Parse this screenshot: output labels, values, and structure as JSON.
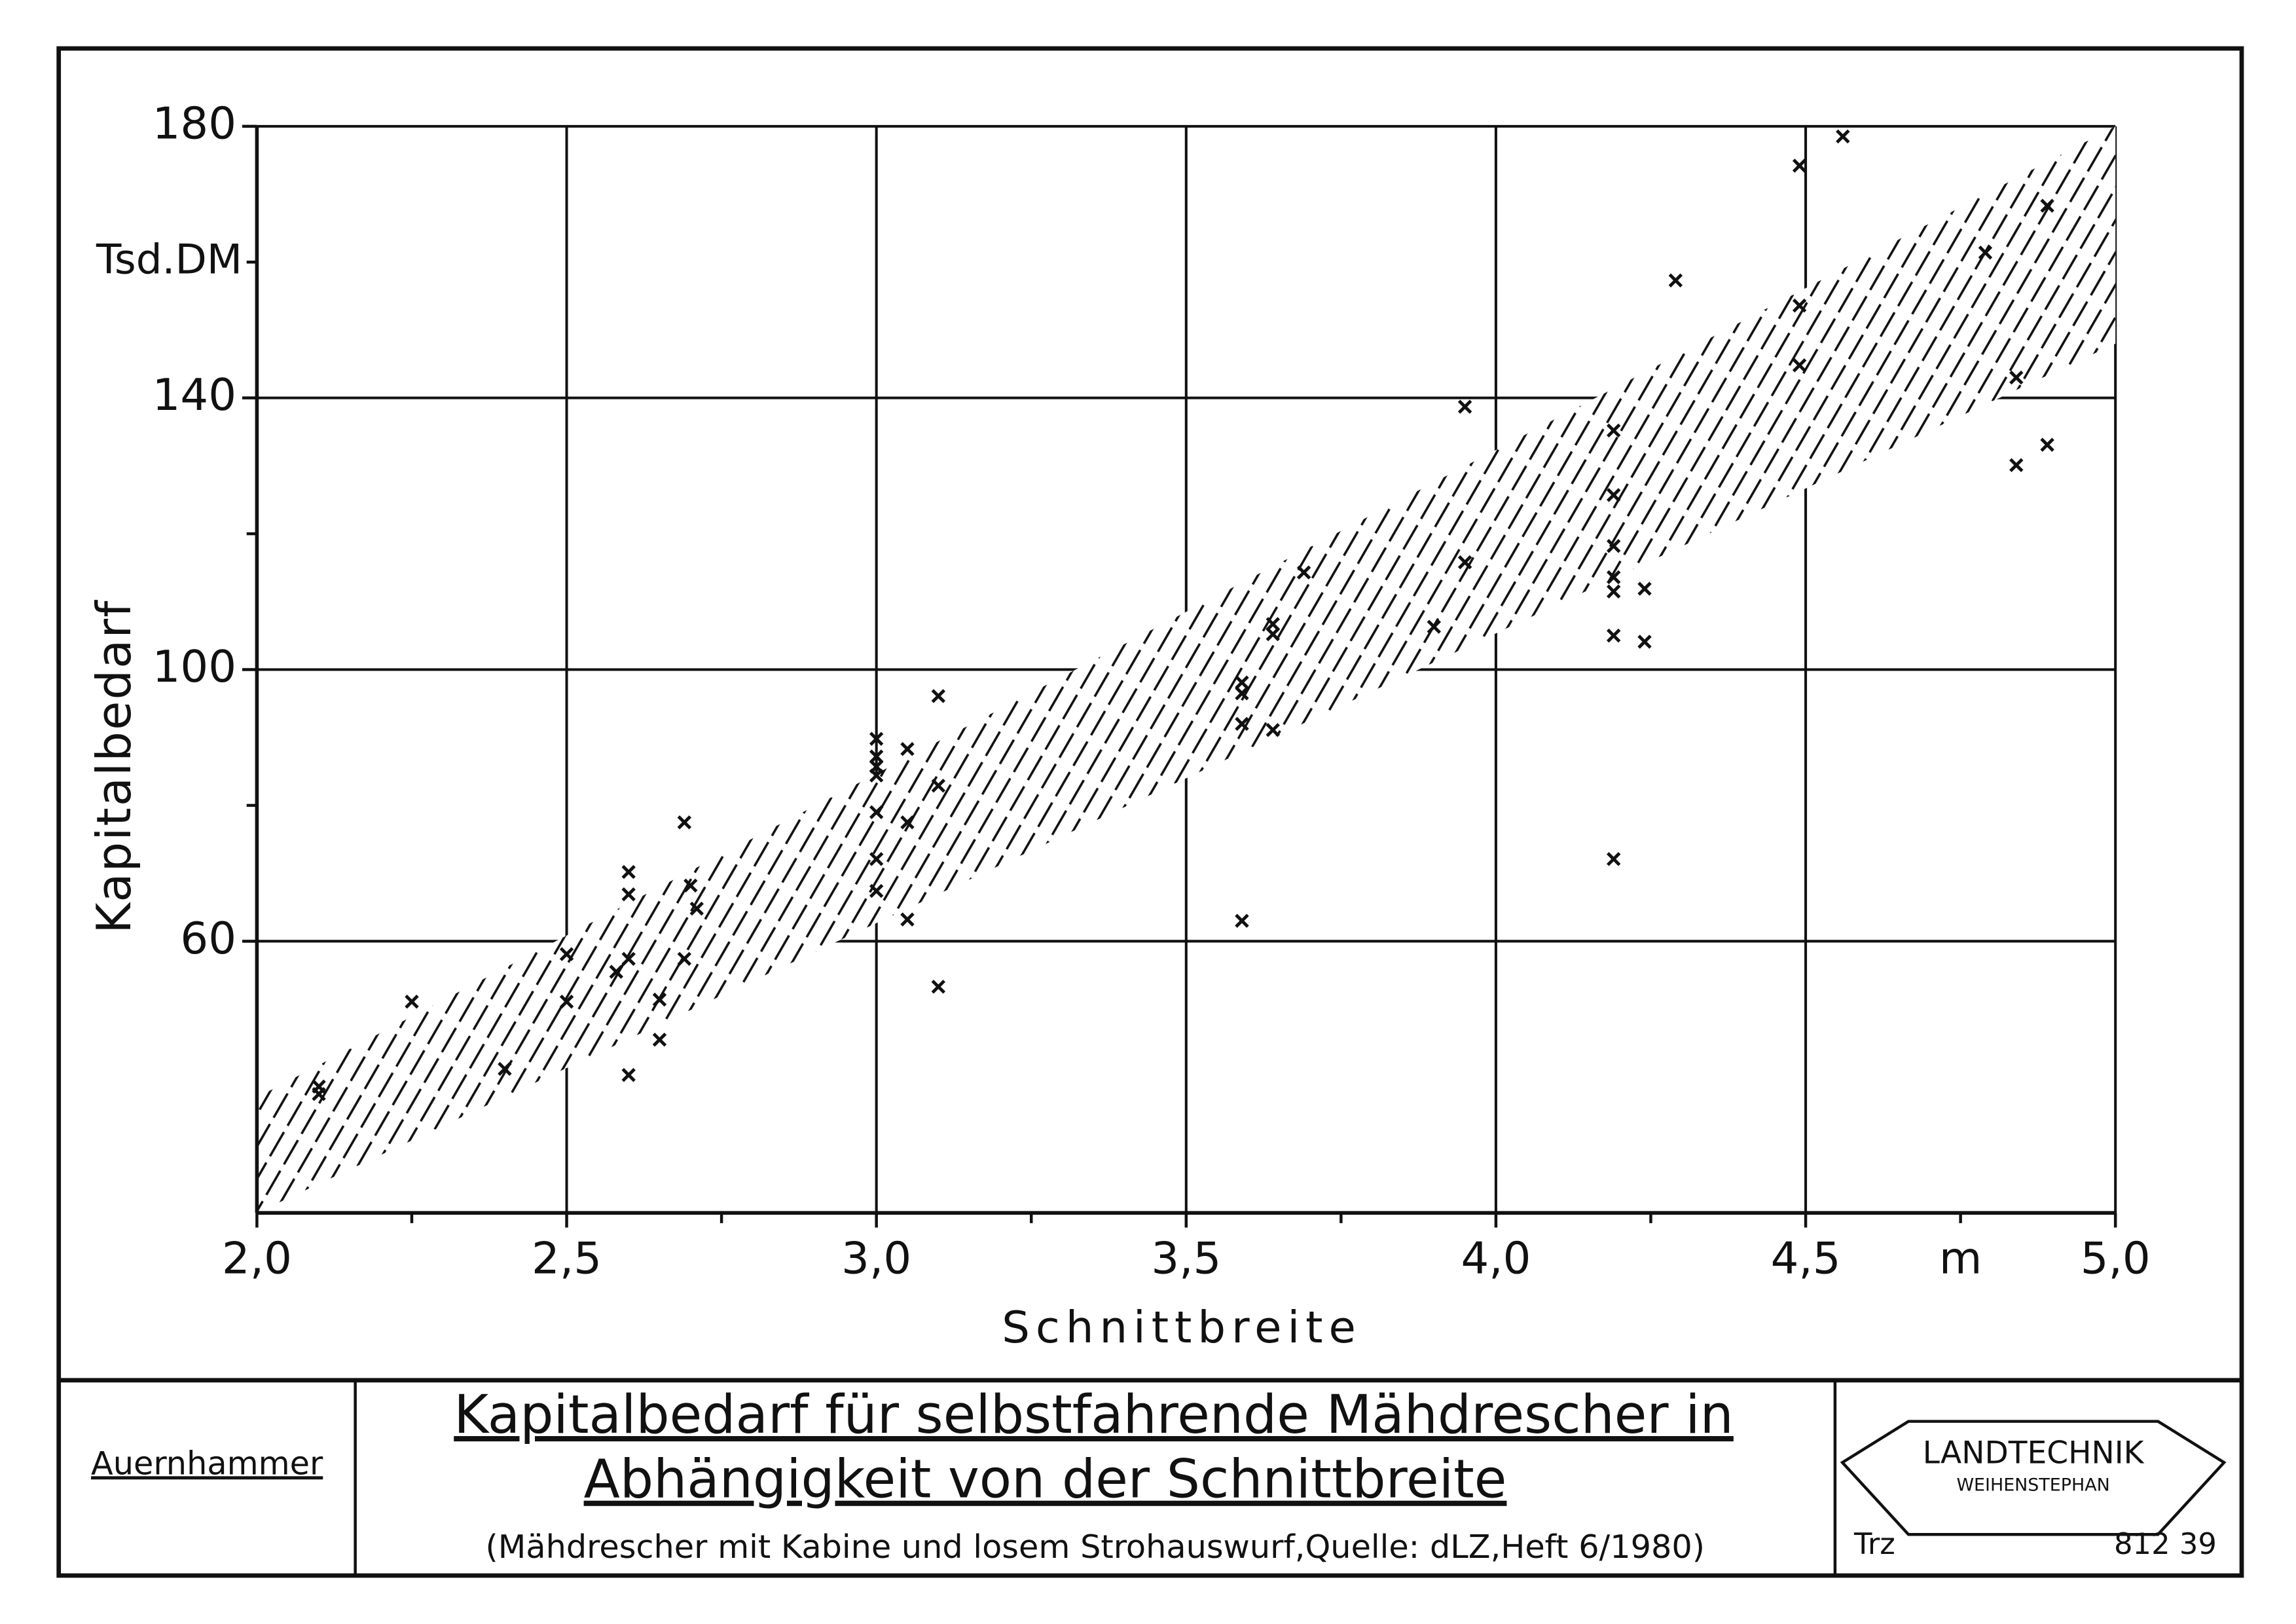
{
  "chart_data": {
    "type": "scatter",
    "x_label": "Schnittbreite",
    "y_label": "Kapitalbedarf",
    "x_unit": "m",
    "y_unit": "Tsd.DM",
    "xlim": [
      2.0,
      5.0
    ],
    "ylim": [
      20,
      180
    ],
    "xticks": [
      {
        "value": 2.0,
        "label": "2,0"
      },
      {
        "value": 2.5,
        "label": "2,5"
      },
      {
        "value": 3.0,
        "label": "3,0"
      },
      {
        "value": 3.5,
        "label": "3,5"
      },
      {
        "value": 4.0,
        "label": "4,0"
      },
      {
        "value": 4.5,
        "label": "4,5"
      },
      {
        "value": 5.0,
        "label": "5,0"
      }
    ],
    "yticks": [
      60,
      100,
      140,
      180
    ],
    "xminor": [
      2.25,
      2.75,
      3.25,
      3.75,
      4.25,
      4.75
    ],
    "yminor": [
      80,
      120,
      160
    ],
    "grid": true,
    "color": "#111111",
    "x": [
      2.1,
      2.1,
      2.25,
      2.4,
      2.5,
      2.5,
      2.58,
      2.6,
      2.6,
      2.6,
      2.6,
      2.65,
      2.65,
      2.69,
      2.69,
      2.7,
      2.71,
      3.0,
      3.0,
      3.0,
      3.0,
      3.0,
      3.0,
      3.0,
      3.05,
      3.05,
      3.05,
      3.1,
      3.1,
      3.1,
      3.59,
      3.59,
      3.59,
      3.59,
      3.64,
      3.64,
      3.64,
      3.69,
      3.9,
      3.95,
      3.95,
      4.19,
      4.19,
      4.19,
      4.19,
      4.19,
      4.19,
      4.19,
      4.24,
      4.24,
      4.29,
      4.49,
      4.49,
      4.49,
      4.56,
      4.79,
      4.84,
      4.84,
      4.89,
      4.89
    ],
    "y": [
      38.6,
      37.5,
      51.1,
      41.2,
      58.1,
      51.1,
      55.5,
      70.2,
      66.9,
      57.4,
      40.3,
      51.4,
      45.5,
      77.5,
      57.4,
      68.2,
      64.8,
      89.8,
      87.2,
      85.7,
      84.4,
      79.0,
      72.1,
      67.4,
      88.3,
      77.5,
      63.2,
      96.1,
      82.9,
      53.3,
      98.1,
      96.5,
      92.0,
      63.0,
      106.7,
      105.2,
      91.1,
      114.3,
      106.3,
      115.8,
      138.7,
      135.2,
      125.7,
      118.2,
      113.6,
      111.5,
      105.0,
      72.1,
      111.9,
      104.1,
      157.3,
      174.2,
      153.6,
      144.8,
      178.5,
      161.4,
      143.0,
      130.1,
      168.3,
      133.1
    ],
    "band": {
      "x": [
        2.0,
        5.0
      ],
      "lower": [
        20,
        148
      ],
      "upper": [
        37,
        180
      ]
    }
  },
  "footer": {
    "author": "Auernhammer",
    "title": [
      "Kapitalbedarf für selbstfahrende Mähdrescher in",
      "Abhängigkeit von der Schnittbreite"
    ],
    "subtitle": "(Mähdrescher mit Kabine und losem Strohauswurf,Quelle: dLZ,Heft 6/1980)",
    "logo": [
      "LANDTECHNIK",
      "WEIHENSTEPHAN"
    ],
    "code": "Trz",
    "number": "812 39"
  }
}
